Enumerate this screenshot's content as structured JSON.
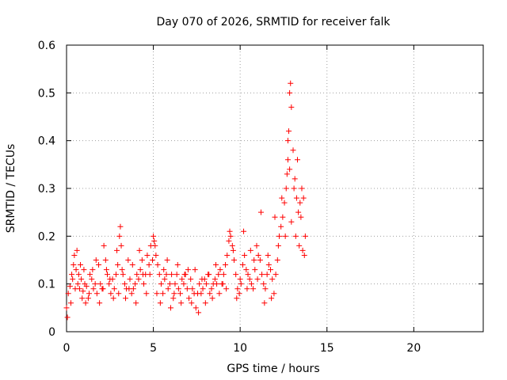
{
  "chart_data": {
    "type": "scatter",
    "title": "Day 070 of 2026, SRMTID for receiver falk",
    "xlabel": "GPS time / hours",
    "ylabel": "SRMTID / TECUs",
    "xlim": [
      0,
      24
    ],
    "ylim": [
      0,
      0.6
    ],
    "xticks": [
      0,
      5,
      10,
      15,
      20
    ],
    "yticks": [
      0,
      0.1,
      0.2,
      0.3,
      0.4,
      0.5,
      0.6
    ],
    "xtick_labels": [
      "0",
      "5",
      "10",
      "15",
      "20"
    ],
    "ytick_labels": [
      "0",
      "0.1",
      "0.2",
      "0.3",
      "0.4",
      "0.5",
      "0.6"
    ],
    "grid": true,
    "marker": "+",
    "series": [
      {
        "name": "SRMTID",
        "color": "#ff0000",
        "x": [
          0.0,
          0.1,
          0.2,
          0.3,
          0.4,
          0.45,
          0.55,
          0.65,
          0.75,
          0.85,
          0.95,
          1.05,
          1.15,
          1.25,
          1.35,
          1.45,
          1.55,
          1.65,
          1.75,
          1.85,
          1.95,
          2.05,
          2.15,
          2.25,
          2.35,
          2.45,
          2.55,
          2.65,
          2.75,
          2.85,
          2.95,
          3.05,
          3.1,
          3.15,
          3.25,
          3.35,
          3.45,
          3.55,
          3.65,
          3.75,
          3.85,
          3.95,
          4.05,
          4.15,
          4.25,
          4.35,
          4.45,
          4.55,
          4.65,
          4.75,
          4.85,
          4.95,
          5.0,
          5.05,
          5.1,
          5.15,
          5.25,
          5.35,
          5.45,
          5.55,
          5.65,
          5.75,
          5.85,
          5.95,
          6.05,
          6.15,
          6.25,
          6.35,
          6.45,
          6.55,
          6.65,
          6.75,
          6.85,
          6.95,
          7.05,
          7.15,
          7.25,
          7.35,
          7.45,
          7.55,
          7.65,
          7.75,
          7.85,
          7.95,
          8.05,
          8.15,
          8.25,
          8.35,
          8.45,
          8.55,
          8.65,
          8.75,
          8.85,
          8.95,
          9.05,
          9.15,
          9.25,
          9.35,
          9.45,
          9.55,
          9.65,
          9.75,
          9.85,
          9.95,
          10.05,
          10.15,
          10.25,
          10.35,
          10.45,
          10.55,
          10.65,
          10.75,
          10.85,
          10.95,
          11.05,
          11.15,
          11.25,
          11.35,
          11.45,
          11.55,
          11.65,
          11.75,
          11.85,
          11.95,
          12.05,
          12.15,
          12.25,
          12.35,
          12.45,
          12.55,
          12.65,
          12.7,
          12.75,
          12.8,
          12.85,
          12.9,
          12.95,
          13.05,
          13.15,
          13.25,
          13.35,
          13.45,
          13.55,
          13.65,
          13.75
        ],
        "y": [
          0.05,
          0.08,
          0.095,
          0.12,
          0.14,
          0.16,
          0.13,
          0.1,
          0.09,
          0.11,
          0.085,
          0.1,
          0.095,
          0.07,
          0.12,
          0.11,
          0.09,
          0.1,
          0.08,
          0.14,
          0.1,
          0.09,
          0.18,
          0.15,
          0.12,
          0.1,
          0.08,
          0.11,
          0.09,
          0.12,
          0.14,
          0.2,
          0.22,
          0.18,
          0.12,
          0.1,
          0.09,
          0.15,
          0.11,
          0.08,
          0.09,
          0.1,
          0.12,
          0.11,
          0.13,
          0.15,
          0.1,
          0.12,
          0.16,
          0.14,
          0.18,
          0.15,
          0.2,
          0.19,
          0.18,
          0.16,
          0.14,
          0.12,
          0.1,
          0.08,
          0.11,
          0.12,
          0.09,
          0.1,
          0.12,
          0.07,
          0.1,
          0.12,
          0.09,
          0.08,
          0.11,
          0.1,
          0.12,
          0.09,
          0.07,
          0.11,
          0.09,
          0.08,
          0.05,
          0.08,
          0.1,
          0.08,
          0.09,
          0.11,
          0.1,
          0.12,
          0.08,
          0.09,
          0.1,
          0.11,
          0.1,
          0.12,
          0.13,
          0.1,
          0.12,
          0.14,
          0.16,
          0.19,
          0.2,
          0.18,
          0.15,
          0.12,
          0.09,
          0.08,
          0.1,
          0.14,
          0.16,
          0.13,
          0.12,
          0.11,
          0.1,
          0.09,
          0.13,
          0.18,
          0.16,
          0.15,
          0.12,
          0.1,
          0.09,
          0.12,
          0.14,
          0.13,
          0.11,
          0.08,
          0.12,
          0.15,
          0.2,
          0.22,
          0.24,
          0.27,
          0.3,
          0.33,
          0.36,
          0.42,
          0.5,
          0.52,
          0.47,
          0.38,
          0.32,
          0.28,
          0.25,
          0.27,
          0.3,
          0.28,
          0.2
        ]
      },
      {
        "name": "SRMTID",
        "color": "#ff0000",
        "x": [
          0.05,
          0.25,
          0.35,
          0.5,
          0.6,
          0.7,
          0.8,
          0.9,
          1.0,
          1.1,
          1.3,
          1.5,
          1.7,
          1.9,
          2.1,
          2.3,
          2.5,
          2.7,
          2.9,
          3.0,
          3.2,
          3.4,
          3.6,
          3.8,
          4.0,
          4.2,
          4.4,
          4.6,
          4.8,
          5.2,
          5.4,
          5.6,
          5.8,
          6.0,
          6.2,
          6.4,
          6.6,
          6.8,
          7.0,
          7.2,
          7.4,
          7.6,
          7.8,
          8.0,
          8.2,
          8.4,
          8.6,
          8.8,
          9.0,
          9.2,
          9.4,
          9.6,
          9.8,
          10.0,
          10.2,
          10.4,
          10.6,
          10.8,
          11.0,
          11.2,
          11.4,
          11.6,
          11.8,
          12.0,
          12.2,
          12.4,
          12.6,
          12.75,
          12.85,
          12.95,
          13.1,
          13.2,
          13.3,
          13.4,
          13.5,
          13.6,
          13.7
        ],
        "y": [
          0.03,
          0.06,
          0.11,
          0.09,
          0.17,
          0.12,
          0.14,
          0.07,
          0.13,
          0.06,
          0.08,
          0.13,
          0.15,
          0.06,
          0.09,
          0.13,
          0.11,
          0.07,
          0.17,
          0.08,
          0.13,
          0.07,
          0.09,
          0.14,
          0.06,
          0.17,
          0.12,
          0.08,
          0.12,
          0.08,
          0.06,
          0.13,
          0.15,
          0.05,
          0.08,
          0.14,
          0.06,
          0.12,
          0.13,
          0.06,
          0.13,
          0.04,
          0.11,
          0.06,
          0.12,
          0.07,
          0.14,
          0.08,
          0.1,
          0.09,
          0.21,
          0.17,
          0.07,
          0.11,
          0.21,
          0.09,
          0.17,
          0.15,
          0.11,
          0.25,
          0.06,
          0.16,
          0.07,
          0.24,
          0.18,
          0.28,
          0.2,
          0.4,
          0.34,
          0.23,
          0.3,
          0.2,
          0.36,
          0.18,
          0.24,
          0.17,
          0.16
        ]
      }
    ]
  }
}
